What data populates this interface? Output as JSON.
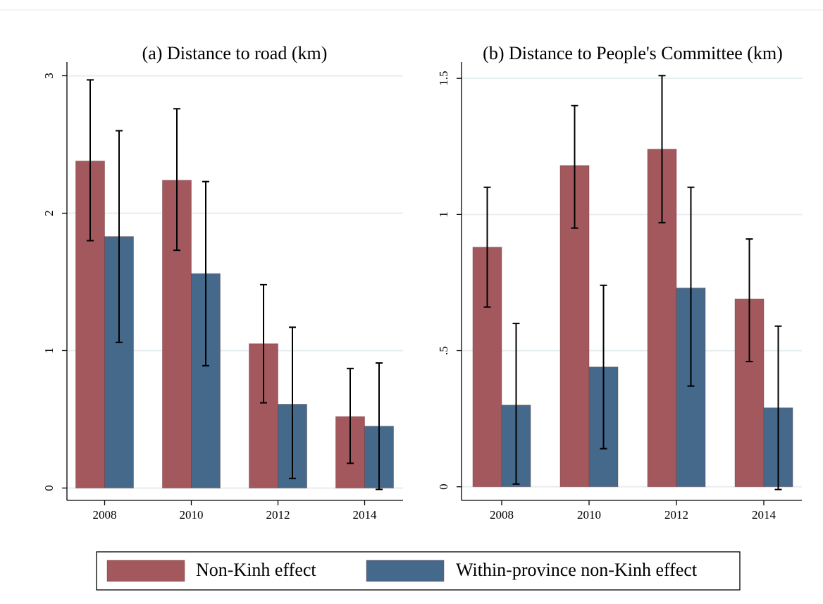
{
  "chart_data": [
    {
      "type": "bar",
      "title": "(a) Distance to road (km)",
      "categories": [
        "2008",
        "2010",
        "2012",
        "2014"
      ],
      "series": [
        {
          "name": "Non-Kinh effect",
          "color": "#a2585c",
          "values": [
            2.38,
            2.24,
            1.05,
            0.52
          ],
          "ci_low": [
            1.8,
            1.73,
            0.62,
            0.18
          ],
          "ci_high": [
            2.97,
            2.76,
            1.48,
            0.87
          ]
        },
        {
          "name": "Within-province non-Kinh effect",
          "color": "#45698b",
          "values": [
            1.83,
            1.56,
            0.61,
            0.45
          ],
          "ci_low": [
            1.06,
            0.89,
            0.07,
            -0.01
          ],
          "ci_high": [
            2.6,
            2.23,
            1.17,
            0.91
          ]
        }
      ],
      "ylim": [
        -0.09,
        3.1
      ],
      "yticks": [
        0,
        1,
        2,
        3
      ],
      "grid": true,
      "legend": "bottom"
    },
    {
      "type": "bar",
      "title": "(b) Distance to People's Committee (km)",
      "categories": [
        "2008",
        "2010",
        "2012",
        "2014"
      ],
      "series": [
        {
          "color": "#a2585c",
          "values": [
            0.88,
            1.18,
            1.24,
            0.69
          ],
          "ci_low": [
            0.66,
            0.95,
            0.97,
            0.46
          ],
          "ci_high": [
            1.1,
            1.4,
            1.51,
            0.91
          ]
        },
        {
          "color": "#45698b",
          "values": [
            0.3,
            0.44,
            0.73,
            0.29
          ],
          "ci_low": [
            0.01,
            0.14,
            0.37,
            -0.01
          ],
          "ci_high": [
            0.6,
            0.74,
            1.1,
            0.59
          ]
        }
      ],
      "ylim": [
        -0.05,
        1.56
      ],
      "yticks": [
        0,
        {
          "value": 0.5,
          "label": ".5"
        },
        1,
        1.5
      ],
      "grid": true
    }
  ]
}
